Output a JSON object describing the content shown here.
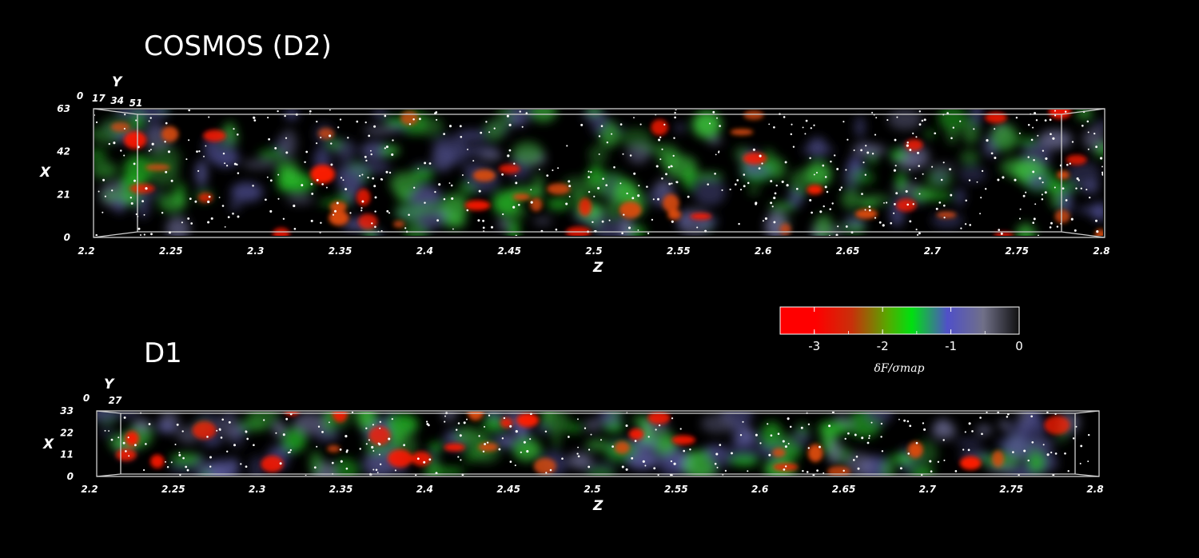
{
  "chart_data": [
    {
      "type": "heatmap",
      "title": "COSMOS (D2)",
      "xlabel": "Z",
      "ylabel": "X",
      "depth_label": "Y",
      "x_ticks": [
        "2.2",
        "2.25",
        "2.3",
        "2.35",
        "2.4",
        "2.45",
        "2.5",
        "2.55",
        "2.6",
        "2.65",
        "2.7",
        "2.75",
        "2.8"
      ],
      "y_ticks": [
        "0",
        "21",
        "42",
        "63"
      ],
      "depth_ticks": [
        "0",
        "17",
        "34",
        "51"
      ],
      "xlim": [
        2.2,
        2.8
      ],
      "ylim": [
        0,
        63
      ]
    },
    {
      "type": "heatmap",
      "title": "D1",
      "xlabel": "Z",
      "ylabel": "X",
      "depth_label": "Y",
      "x_ticks": [
        "2.2",
        "2.25",
        "2.3",
        "2.35",
        "2.4",
        "2.45",
        "2.5",
        "2.55",
        "2.6",
        "2.65",
        "2.7",
        "2.75",
        "2.8"
      ],
      "y_ticks": [
        "0",
        "11",
        "22",
        "33"
      ],
      "depth_ticks": [
        "0",
        "27"
      ],
      "xlim": [
        2.2,
        2.8
      ],
      "ylim": [
        0,
        33
      ]
    }
  ],
  "colorbar": {
    "ticks": [
      "-3",
      "-2",
      "-1",
      "0"
    ],
    "tick_values": [
      -3,
      -2,
      -1,
      0
    ],
    "range": [
      -3.5,
      0
    ],
    "label": "δF/σmap",
    "colors": [
      "#ff0000",
      "#cc2200",
      "#00dd11",
      "#5555bb",
      "#666677",
      "#111111"
    ]
  }
}
